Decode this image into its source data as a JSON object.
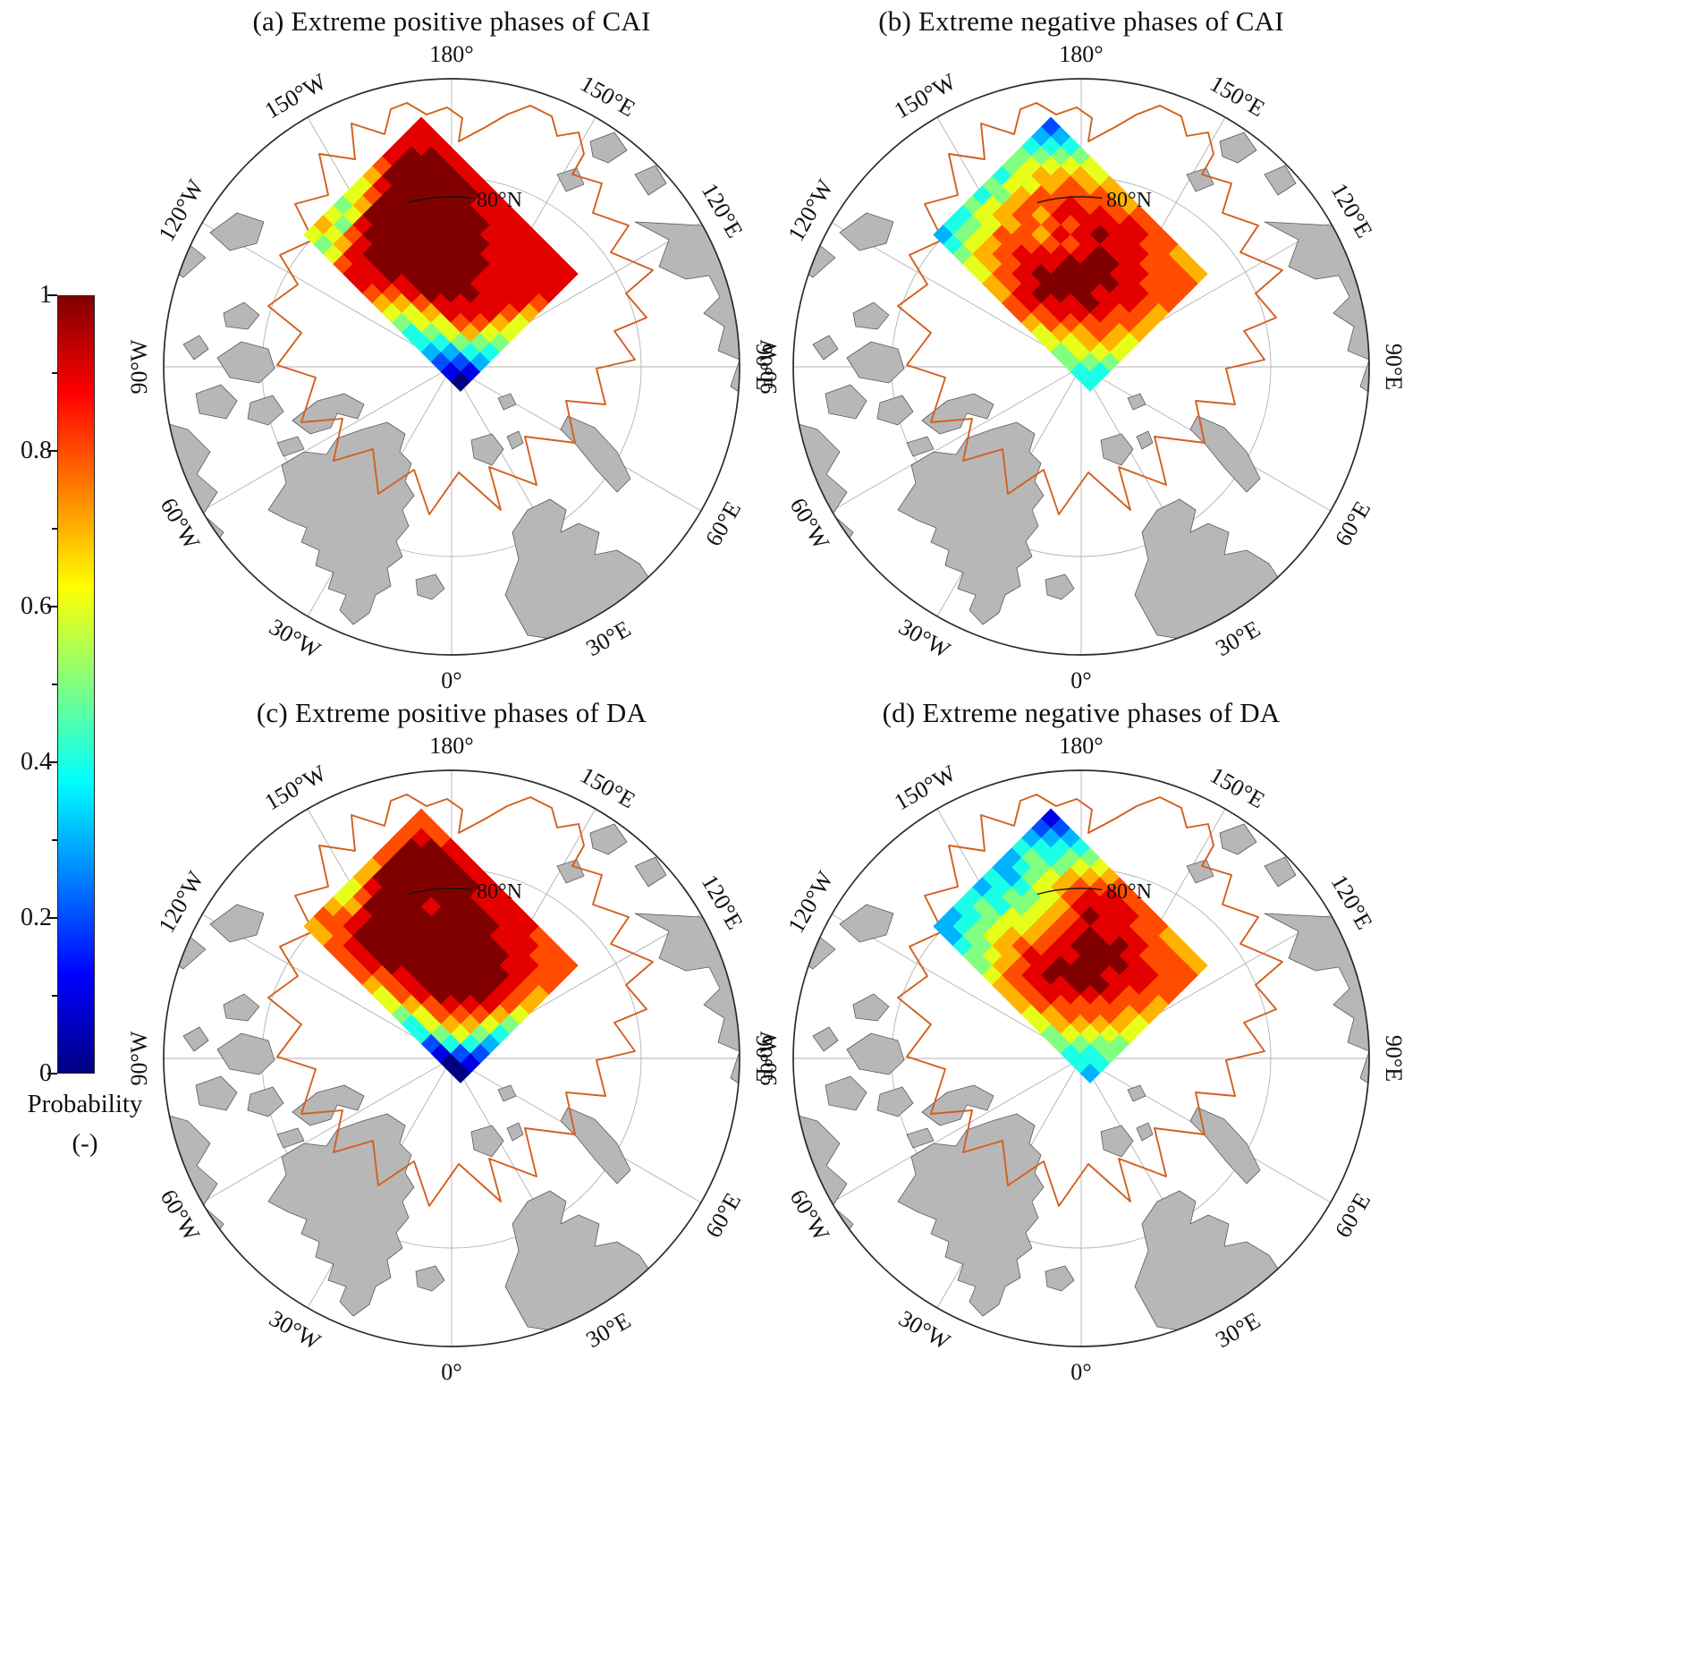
{
  "chart_data": {
    "type": "heatmap",
    "subtype": "polar-stereographic-map-grid",
    "description": "Four north-polar maps of probability over the Arctic Ocean study region",
    "colorbar": {
      "label": "Probability",
      "units": "(-)",
      "ticks": [
        1,
        0.8,
        0.6,
        0.4,
        0.2,
        0
      ],
      "tick_labels": [
        "1",
        "0.8",
        "0.6",
        "0.4",
        "0.2",
        "0"
      ],
      "colormap": "jet",
      "range": [
        0,
        1
      ],
      "orientation": "vertical",
      "position": "left"
    },
    "map": {
      "latitude_label": "80°N",
      "meridian_labels": [
        {
          "text": "180°",
          "lon": 180
        },
        {
          "text": "150°W",
          "lon": -150
        },
        {
          "text": "150°E",
          "lon": 150
        },
        {
          "text": "120°W",
          "lon": -120
        },
        {
          "text": "120°E",
          "lon": 120
        },
        {
          "text": "90°W",
          "lon": -90
        },
        {
          "text": "90°E",
          "lon": 90
        },
        {
          "text": "60°W",
          "lon": -60
        },
        {
          "text": "60°E",
          "lon": 60
        },
        {
          "text": "30°W",
          "lon": -30
        },
        {
          "text": "30°E",
          "lon": 30
        },
        {
          "text": "0°",
          "lon": 0
        }
      ]
    },
    "value_encoding": "each grid character is probability*10; A = 1.0",
    "panels": [
      {
        "id": "a",
        "title": "(a) Extreme positive phases of CAI",
        "grid": [
          "9999999999999999",
          "99AAAAA999999999",
          "9AAAAAAAA9999999",
          "9AAAAAAAAA999998",
          "8AAAAAAAAAA99997",
          "79AAAAAAAAA99986",
          "68AAAAAAAAAA9976",
          "67AAAAAAAAA99865",
          "569AAAAAAA998754",
          "6589AAA998766543",
          "7679999876654321",
          "6568998765443210"
        ]
      },
      {
        "id": "b",
        "title": "(b) Extreme negative phases of CAI",
        "grid": [
          "2345667778888777",
          "3456778889988888",
          "4567888999998888",
          "56778999A9999888",
          "566889899AA99987",
          "467878989AAA9987",
          "55788789AAA99887",
          "46778899AAAA9876",
          "5668899AAA998876",
          "45678899A9987765",
          "4567788998876654",
          "3456677887665544"
        ]
      },
      {
        "id": "c",
        "title": "(c) Extreme positive phases of DA",
        "grid": [
          "8889999999998888",
          "89AAAAA999999888",
          "8AAAAAAAAA999988",
          "8AAAAAAAAAAA9987",
          "8AAAA9AAAAAAA987",
          "7AAAAAAAAAAAA986",
          "79AAAAAAAAAAA975",
          "68AAAAAAAAAA9864",
          "679AAAAAAAA98753",
          "789AAAA999887642",
          "8889998887665421",
          "7788887665442100"
        ]
      },
      {
        "id": "d",
        "title": "(d) Extreme negative phases of DA",
        "grid": [
          "1234567888887777",
          "2345678999888888",
          "3445789999998888",
          "4556789A99A99988",
          "34566789AAAA9987",
          "33456789AAA99887",
          "445567899AAA9876",
          "34466789AAA98876",
          "45567899A9988765",
          "4456778999887655",
          "3455678888776544",
          "3345567776655443"
        ]
      }
    ]
  }
}
